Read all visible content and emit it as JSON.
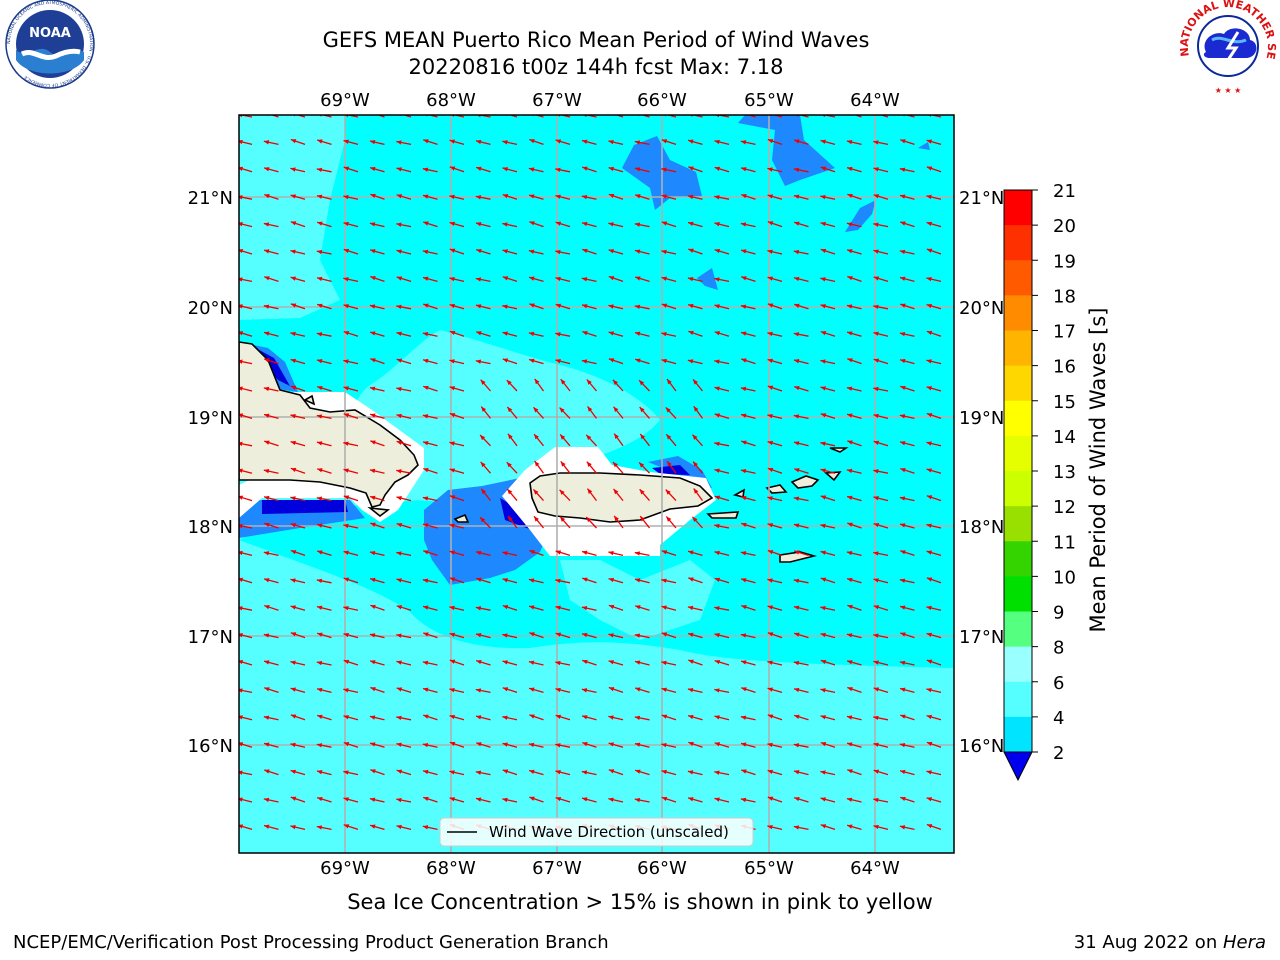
{
  "title": {
    "line1": "GEFS MEAN Puerto Rico Mean Period of Wind Waves",
    "line2": "20220816 t00z 144h fcst   Max: 7.18"
  },
  "axes": {
    "lon_ticks": [
      "69°W",
      "68°W",
      "67°W",
      "66°W",
      "65°W",
      "64°W"
    ],
    "lat_ticks": [
      "21°N",
      "20°N",
      "19°N",
      "18°N",
      "17°N",
      "16°N"
    ]
  },
  "legend": {
    "label": "Wind Wave Direction (unscaled)"
  },
  "colorbar": {
    "label": "Mean Period of Wind Waves [s]",
    "ticks": [
      "2",
      "4",
      "6",
      "8",
      "9",
      "10",
      "11",
      "12",
      "13",
      "14",
      "15",
      "16",
      "17",
      "18",
      "19",
      "20",
      "21"
    ],
    "colors": [
      "#0055ff",
      "#00e4ff",
      "#55ffff",
      "#99ffff",
      "#55ff80",
      "#00e000",
      "#33d400",
      "#99e000",
      "#ccff00",
      "#e6ff00",
      "#ffff00",
      "#ffd700",
      "#ffb400",
      "#ff8c00",
      "#ff5a00",
      "#ff3000",
      "#ff0000"
    ],
    "under_color": "#0000ee"
  },
  "field_colors": {
    "ocean_main": "#00ffff",
    "ocean_light": "#55ffff",
    "ocean_blue": "#1e88ff",
    "ocean_deep": "#0000dd",
    "land": "#eeeedd",
    "arrow": "#ee0000"
  },
  "caption": "Sea Ice Concentration > 15% is shown in pink to yellow",
  "footer": {
    "left": "NCEP/EMC/Verification Post Processing Product Generation Branch",
    "right_date": "31 Aug 2022 on ",
    "right_host": "Hera"
  },
  "logos": {
    "noaa_text": "NOAA",
    "noaa_ring": "NATIONAL OCEANIC AND ATMOSPHERIC ADMINISTRATION · U.S. DEPARTMENT OF COMMERCE",
    "nws_ring": "NATIONAL WEATHER SERVICE"
  }
}
